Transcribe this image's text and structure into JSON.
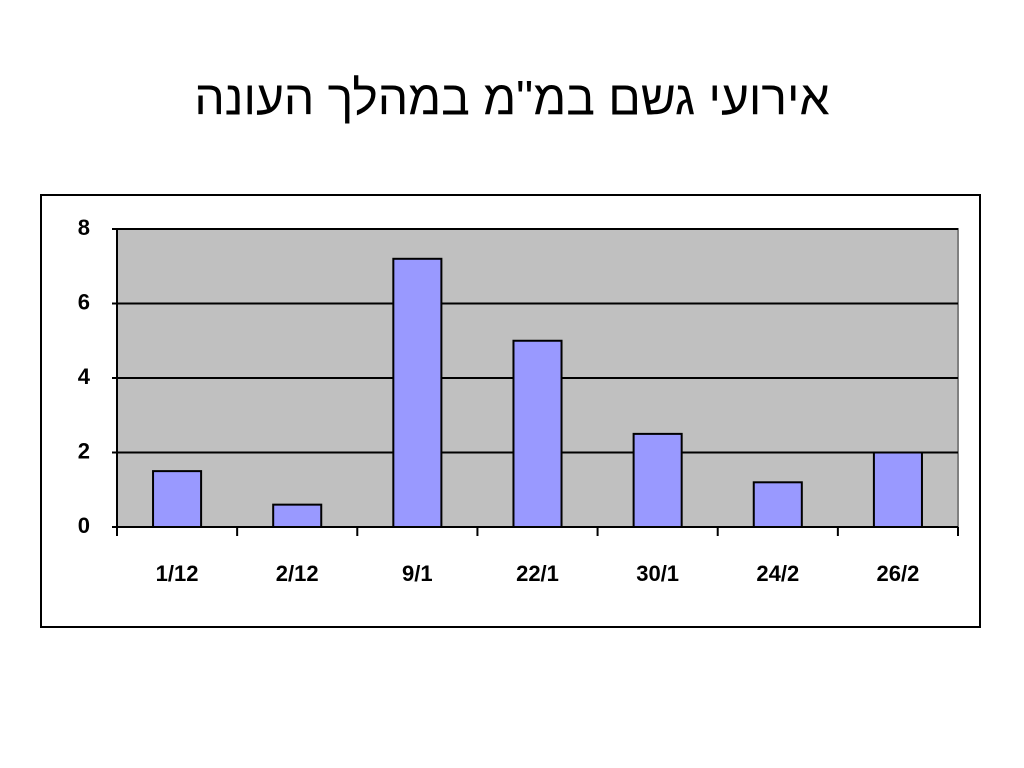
{
  "chart_data": {
    "type": "bar",
    "title": "אירועי גשם במ\"מ במהלך העונה",
    "categories": [
      "1/12",
      "2/12",
      "9/1",
      "22/1",
      "30/1",
      "24/2",
      "26/2"
    ],
    "values": [
      1.5,
      0.6,
      7.2,
      5,
      2.5,
      1.2,
      2
    ],
    "color": "#9999ff",
    "ylim": [
      0,
      8
    ],
    "yticks": [
      0,
      2,
      4,
      6,
      8
    ],
    "grid": true
  }
}
